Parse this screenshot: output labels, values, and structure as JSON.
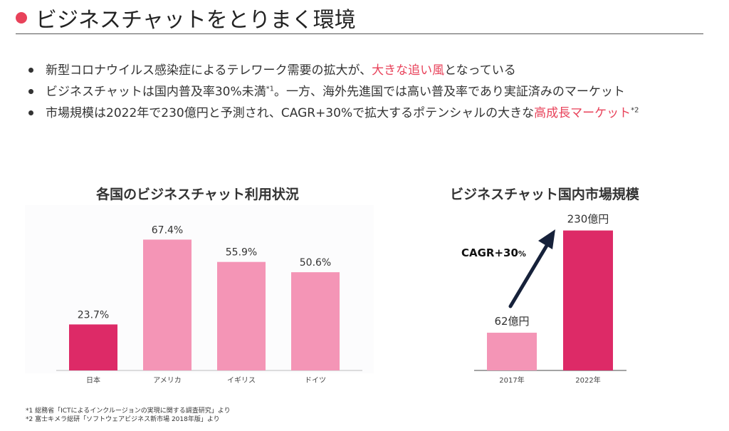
{
  "header": {
    "title": "ビジネスチャットをとりまく環境",
    "accent_color": "#e8425a",
    "marker_icon": "circle-bullet-icon"
  },
  "bullets": [
    {
      "before": "新型コロナウイルス感染症によるテレワーク需要の拡大が、",
      "highlight": "大きな追い風",
      "after": "となっている",
      "note": ""
    },
    {
      "before": "ビジネスチャットは国内普及率30%未満",
      "note": "*1",
      "after2": "。一方、海外先進国では高い普及率であり実証済みのマーケット"
    },
    {
      "before": "市場規模は2022年で230億円と予測され、CAGR+30%で拡大するポテンシャルの大きな",
      "highlight": "高成長マーケット",
      "note": "*2"
    }
  ],
  "chart_data": [
    {
      "type": "bar",
      "title": "各国のビジネスチャット利用状況",
      "categories": [
        "日本",
        "アメリカ",
        "イギリス",
        "ドイツ"
      ],
      "values": [
        23.7,
        67.4,
        55.9,
        50.6
      ],
      "labels": [
        "23.7%",
        "67.4%",
        "55.9%",
        "50.6%"
      ],
      "colors": [
        "#dd2a67",
        "#f495b6",
        "#f495b6",
        "#f495b6"
      ],
      "ylim": [
        0,
        80
      ],
      "grid": false,
      "legend": "none"
    },
    {
      "type": "bar",
      "title": "ビジネスチャット国内市場規模",
      "categories": [
        "2017年",
        "2022年"
      ],
      "values": [
        62,
        230
      ],
      "labels": [
        "62億円",
        "230億円"
      ],
      "colors": [
        "#f495b6",
        "#dd2a67"
      ],
      "ylim": [
        0,
        240
      ],
      "annotation": {
        "main": "CAGR+30",
        "unit": "%",
        "arrow_color": "#16213a"
      },
      "grid": false,
      "legend": "none"
    }
  ],
  "footnotes": [
    "*1 総務省「ICTによるインクルージョンの実現に関する調査研究」より",
    "*2 富士キメラ総研「ソフトウェアビジネス新市場 2018年版」より"
  ]
}
